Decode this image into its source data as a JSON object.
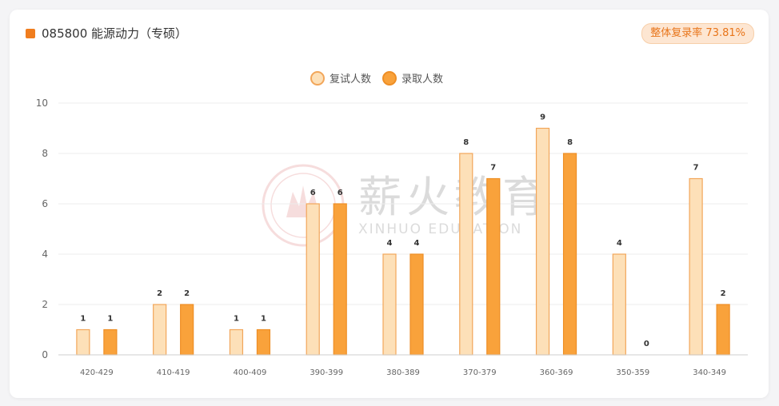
{
  "header": {
    "title": "085800 能源动力（专硕）",
    "rate_badge": "整体复录率 73.81%"
  },
  "watermark": {
    "brand": "薪火教育",
    "brand_en": "XINHUO EDUCATION"
  },
  "colors": {
    "accent": "#f07d1e",
    "retest_fill": "#fde0b8",
    "retest_stroke": "#f2a65a",
    "admit_fill": "#f9a23b",
    "admit_stroke": "#ee8e25"
  },
  "chart_data": {
    "type": "bar",
    "categories": [
      "420-429",
      "410-419",
      "400-409",
      "390-399",
      "380-389",
      "370-379",
      "360-369",
      "350-359",
      "340-349"
    ],
    "series": [
      {
        "name": "复试人数",
        "values": [
          1,
          2,
          1,
          6,
          4,
          8,
          9,
          4,
          7
        ]
      },
      {
        "name": "录取人数",
        "values": [
          1,
          2,
          1,
          6,
          4,
          7,
          8,
          0,
          2
        ]
      }
    ],
    "ylim": [
      0,
      10
    ],
    "yticks": [
      0,
      2,
      4,
      6,
      8,
      10
    ],
    "grid": true,
    "legend_position": "top-center",
    "data_labels": true
  }
}
